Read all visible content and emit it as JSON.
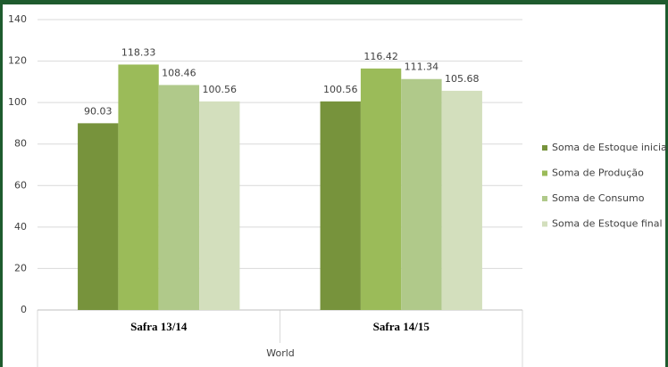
{
  "chart_data": {
    "type": "bar",
    "categories": [
      "Safra 13/14",
      "Safra 14/15"
    ],
    "x_label": "World",
    "series": [
      {
        "name": "Soma de Estoque inicial",
        "color": "#77933c",
        "values": [
          90.03,
          100.56
        ]
      },
      {
        "name": "Soma de Produção",
        "color": "#9bbb59",
        "values": [
          118.33,
          116.42
        ]
      },
      {
        "name": "Soma de Consumo",
        "color": "#b0c98a",
        "values": [
          108.46,
          111.34
        ]
      },
      {
        "name": "Soma de Estoque final",
        "color": "#d3dfbd",
        "values": [
          100.56,
          105.68
        ]
      }
    ],
    "ylim": [
      0,
      140
    ],
    "yticks": [
      0,
      20,
      40,
      60,
      80,
      100,
      120,
      140
    ],
    "grid": true,
    "legend": "right"
  }
}
